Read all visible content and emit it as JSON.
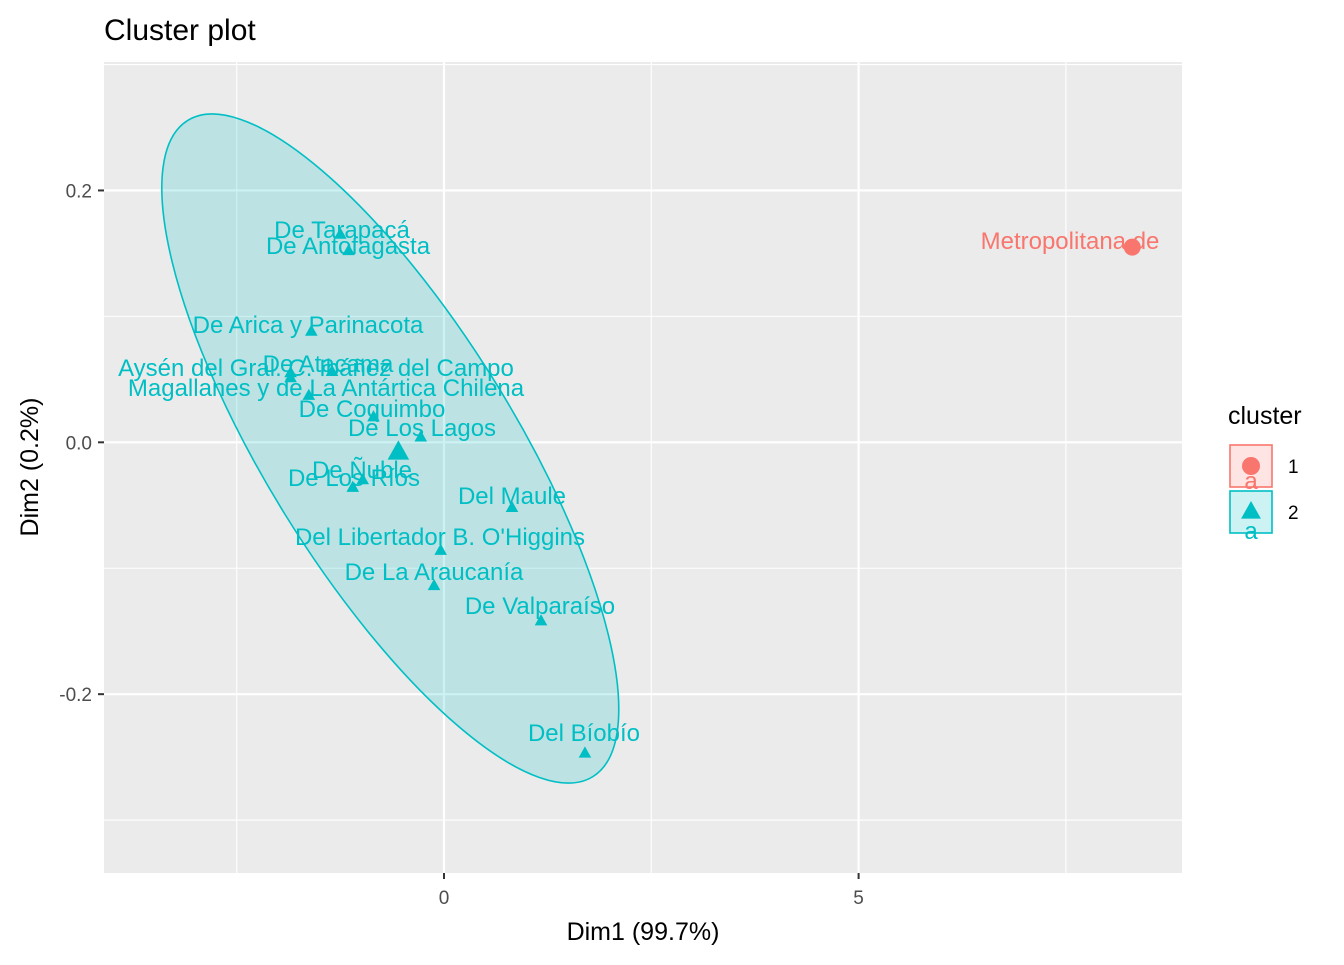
{
  "chart_data": {
    "type": "scatter",
    "title": "Cluster plot",
    "xlabel": "Dim1 (99.7%)",
    "ylabel": "Dim2 (0.2%)",
    "xlim": [
      -4.1,
      8.9
    ],
    "ylim": [
      -0.342,
      0.302
    ],
    "x_ticks": [
      0,
      5
    ],
    "y_ticks": [
      -0.2,
      0.0,
      0.2
    ],
    "y_tick_labels": [
      "-0.2",
      "0.0",
      "0.2"
    ],
    "grid": true,
    "legend": {
      "title": "cluster",
      "placement": "right",
      "entries": [
        {
          "label": "1",
          "key_glyph": "a"
        },
        {
          "label": "2",
          "key_glyph": "a"
        }
      ]
    },
    "colors": {
      "cluster_1": "#F8766D",
      "cluster_2": "#00BFC4",
      "panel": "#EBEBEB",
      "grid": "#FFFFFF"
    },
    "series": [
      {
        "cluster": "1",
        "shape": "circle",
        "color": "#F8766D",
        "points": [
          {
            "label": "Metropolitana de",
            "x": 8.3,
            "y": 0.155
          }
        ]
      },
      {
        "cluster": "2",
        "shape": "triangle",
        "color": "#00BFC4",
        "points": [
          {
            "label": "De Tarapacá",
            "x": -1.25,
            "y": 0.165
          },
          {
            "label": "De Antofagasta",
            "x": -1.15,
            "y": 0.152
          },
          {
            "label": "De Arica y Parinacota",
            "x": -1.6,
            "y": 0.088
          },
          {
            "label": "De Atacama",
            "x": -1.35,
            "y": 0.056
          },
          {
            "label": "Aysén del Gral. C. Ibáñez del Campo",
            "x": -1.85,
            "y": 0.055
          },
          {
            "label": "Magallanes y de La Antártica Chilena",
            "x": -1.85,
            "y": 0.051
          },
          {
            "label": "De Coquimbo",
            "x": -1.63,
            "y": 0.037
          },
          {
            "label": "De Los Lagos",
            "x": -0.85,
            "y": 0.02
          },
          {
            "label": "De Ñuble",
            "x": -0.28,
            "y": 0.004
          },
          {
            "label": "De Los Ríos",
            "x": -1.1,
            "y": -0.036
          },
          {
            "label": "",
            "x": -0.98,
            "y": -0.03
          },
          {
            "label": "Del Maule",
            "x": 0.82,
            "y": -0.052
          },
          {
            "label": "Del Libertador B. O'Higgins",
            "x": -0.04,
            "y": -0.086
          },
          {
            "label": "De La Araucanía",
            "x": -0.12,
            "y": -0.114
          },
          {
            "label": "De Valparaíso",
            "x": 1.17,
            "y": -0.142
          },
          {
            "label": "Del Bíobío",
            "x": 1.7,
            "y": -0.247
          }
        ],
        "centroid": {
          "x": -0.55,
          "y": -0.008
        }
      }
    ]
  }
}
